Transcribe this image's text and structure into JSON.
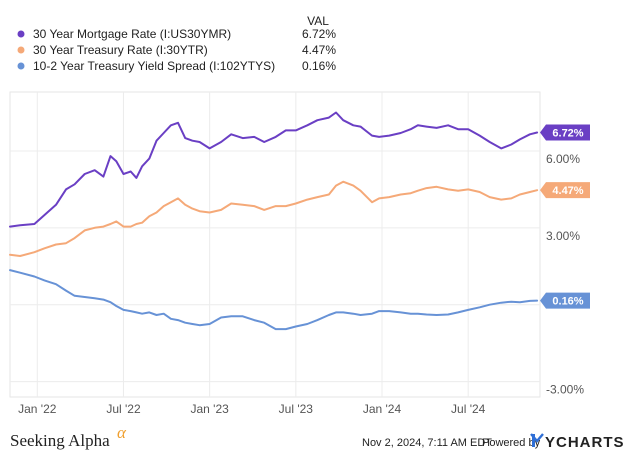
{
  "chart_data": {
    "type": "line",
    "title": "",
    "legend_header": "VAL",
    "y_ticks": [
      {
        "value": 6,
        "label": "6.00%"
      },
      {
        "value": 3,
        "label": "3.00%"
      },
      {
        "value": -3,
        "label": "-3.00%"
      }
    ],
    "ylim": [
      -3.6,
      8.3
    ],
    "x_ticks": [
      {
        "t": 0.7,
        "label": "Jan '22"
      },
      {
        "t": 6.7,
        "label": "Jul '22"
      },
      {
        "t": 12.7,
        "label": "Jan '23"
      },
      {
        "t": 18.7,
        "label": "Jul '23"
      },
      {
        "t": 24.7,
        "label": "Jan '24"
      },
      {
        "t": 30.7,
        "label": "Jul '24"
      }
    ],
    "xlim": [
      -1.2,
      35.7
    ],
    "series": [
      {
        "name": "30 Year Mortgage Rate (I:US30YMR)",
        "value_label": "6.72%",
        "badge": "6.72%",
        "color": "#6a3fc4",
        "points": [
          [
            -1.2,
            3.05
          ],
          [
            -0.5,
            3.1
          ],
          [
            0.5,
            3.15
          ],
          [
            1.2,
            3.5
          ],
          [
            2.0,
            3.9
          ],
          [
            2.7,
            4.5
          ],
          [
            3.3,
            4.7
          ],
          [
            4.0,
            5.1
          ],
          [
            4.7,
            5.25
          ],
          [
            5.3,
            5.0
          ],
          [
            5.8,
            5.8
          ],
          [
            6.2,
            5.6
          ],
          [
            6.7,
            5.1
          ],
          [
            7.2,
            5.2
          ],
          [
            7.6,
            4.95
          ],
          [
            8.0,
            5.4
          ],
          [
            8.5,
            5.7
          ],
          [
            9.0,
            6.4
          ],
          [
            9.5,
            6.7
          ],
          [
            10.0,
            7.0
          ],
          [
            10.5,
            7.1
          ],
          [
            11.0,
            6.5
          ],
          [
            11.5,
            6.4
          ],
          [
            12.0,
            6.35
          ],
          [
            12.7,
            6.1
          ],
          [
            13.5,
            6.35
          ],
          [
            14.2,
            6.65
          ],
          [
            15.0,
            6.5
          ],
          [
            15.8,
            6.55
          ],
          [
            16.5,
            6.35
          ],
          [
            17.3,
            6.55
          ],
          [
            18.0,
            6.8
          ],
          [
            18.7,
            6.8
          ],
          [
            19.5,
            7.0
          ],
          [
            20.2,
            7.2
          ],
          [
            21.0,
            7.3
          ],
          [
            21.5,
            7.5
          ],
          [
            22.0,
            7.2
          ],
          [
            22.7,
            7.0
          ],
          [
            23.2,
            6.95
          ],
          [
            24.0,
            6.6
          ],
          [
            24.5,
            6.55
          ],
          [
            25.2,
            6.6
          ],
          [
            26.0,
            6.7
          ],
          [
            26.7,
            6.85
          ],
          [
            27.2,
            7.0
          ],
          [
            27.8,
            6.95
          ],
          [
            28.5,
            6.9
          ],
          [
            29.3,
            7.0
          ],
          [
            30.0,
            6.85
          ],
          [
            30.7,
            6.85
          ],
          [
            31.5,
            6.6
          ],
          [
            32.2,
            6.35
          ],
          [
            33.0,
            6.1
          ],
          [
            33.7,
            6.25
          ],
          [
            34.3,
            6.45
          ],
          [
            35.0,
            6.65
          ],
          [
            35.5,
            6.72
          ]
        ]
      },
      {
        "name": "30 Year Treasury Rate (I:30YTR)",
        "value_label": "4.47%",
        "badge": "4.47%",
        "color": "#f5a978",
        "points": [
          [
            -1.2,
            1.95
          ],
          [
            -0.5,
            1.9
          ],
          [
            0.5,
            2.05
          ],
          [
            1.2,
            2.2
          ],
          [
            2.0,
            2.35
          ],
          [
            2.7,
            2.4
          ],
          [
            3.3,
            2.6
          ],
          [
            4.0,
            2.9
          ],
          [
            4.7,
            3.0
          ],
          [
            5.3,
            3.05
          ],
          [
            5.8,
            3.15
          ],
          [
            6.2,
            3.25
          ],
          [
            6.7,
            3.05
          ],
          [
            7.2,
            3.05
          ],
          [
            7.6,
            3.15
          ],
          [
            8.0,
            3.2
          ],
          [
            8.5,
            3.45
          ],
          [
            9.0,
            3.6
          ],
          [
            9.5,
            3.85
          ],
          [
            10.0,
            4.0
          ],
          [
            10.5,
            4.15
          ],
          [
            11.0,
            3.9
          ],
          [
            11.5,
            3.75
          ],
          [
            12.0,
            3.65
          ],
          [
            12.7,
            3.6
          ],
          [
            13.5,
            3.7
          ],
          [
            14.2,
            3.95
          ],
          [
            15.0,
            3.9
          ],
          [
            15.8,
            3.85
          ],
          [
            16.5,
            3.7
          ],
          [
            17.3,
            3.85
          ],
          [
            18.0,
            3.85
          ],
          [
            18.7,
            3.95
          ],
          [
            19.5,
            4.1
          ],
          [
            20.2,
            4.2
          ],
          [
            21.0,
            4.3
          ],
          [
            21.5,
            4.65
          ],
          [
            22.0,
            4.8
          ],
          [
            22.7,
            4.65
          ],
          [
            23.2,
            4.45
          ],
          [
            24.0,
            4.0
          ],
          [
            24.5,
            4.15
          ],
          [
            25.2,
            4.2
          ],
          [
            26.0,
            4.3
          ],
          [
            26.7,
            4.35
          ],
          [
            27.2,
            4.45
          ],
          [
            27.8,
            4.55
          ],
          [
            28.5,
            4.6
          ],
          [
            29.3,
            4.5
          ],
          [
            30.0,
            4.45
          ],
          [
            30.7,
            4.5
          ],
          [
            31.5,
            4.4
          ],
          [
            32.2,
            4.2
          ],
          [
            33.0,
            4.1
          ],
          [
            33.7,
            4.15
          ],
          [
            34.3,
            4.3
          ],
          [
            35.0,
            4.4
          ],
          [
            35.5,
            4.47
          ]
        ]
      },
      {
        "name": "10-2 Year Treasury Yield Spread (I:102YTYS)",
        "value_label": "0.16%",
        "badge": "0.16%",
        "color": "#6792d6",
        "points": [
          [
            -1.2,
            1.35
          ],
          [
            -0.5,
            1.25
          ],
          [
            0.5,
            1.1
          ],
          [
            1.2,
            0.95
          ],
          [
            2.0,
            0.8
          ],
          [
            2.7,
            0.55
          ],
          [
            3.3,
            0.35
          ],
          [
            4.0,
            0.3
          ],
          [
            4.7,
            0.25
          ],
          [
            5.3,
            0.2
          ],
          [
            5.8,
            0.1
          ],
          [
            6.2,
            -0.05
          ],
          [
            6.7,
            -0.2
          ],
          [
            7.2,
            -0.25
          ],
          [
            7.6,
            -0.3
          ],
          [
            8.0,
            -0.35
          ],
          [
            8.5,
            -0.3
          ],
          [
            9.0,
            -0.4
          ],
          [
            9.5,
            -0.35
          ],
          [
            10.0,
            -0.55
          ],
          [
            10.5,
            -0.6
          ],
          [
            11.0,
            -0.7
          ],
          [
            11.5,
            -0.75
          ],
          [
            12.0,
            -0.8
          ],
          [
            12.7,
            -0.75
          ],
          [
            13.5,
            -0.5
          ],
          [
            14.2,
            -0.45
          ],
          [
            15.0,
            -0.45
          ],
          [
            15.8,
            -0.6
          ],
          [
            16.5,
            -0.7
          ],
          [
            17.3,
            -0.95
          ],
          [
            18.0,
            -0.95
          ],
          [
            18.7,
            -0.85
          ],
          [
            19.5,
            -0.75
          ],
          [
            20.2,
            -0.6
          ],
          [
            21.0,
            -0.4
          ],
          [
            21.5,
            -0.3
          ],
          [
            22.0,
            -0.3
          ],
          [
            22.7,
            -0.35
          ],
          [
            23.2,
            -0.4
          ],
          [
            24.0,
            -0.35
          ],
          [
            24.5,
            -0.25
          ],
          [
            25.2,
            -0.25
          ],
          [
            26.0,
            -0.3
          ],
          [
            26.7,
            -0.35
          ],
          [
            27.2,
            -0.35
          ],
          [
            27.8,
            -0.38
          ],
          [
            28.5,
            -0.4
          ],
          [
            29.3,
            -0.38
          ],
          [
            30.0,
            -0.3
          ],
          [
            30.7,
            -0.2
          ],
          [
            31.5,
            -0.1
          ],
          [
            32.2,
            0.0
          ],
          [
            33.0,
            0.08
          ],
          [
            33.7,
            0.12
          ],
          [
            34.3,
            0.1
          ],
          [
            35.0,
            0.15
          ],
          [
            35.5,
            0.16
          ]
        ]
      }
    ]
  },
  "footer": {
    "brand": "Seeking Alpha",
    "brand_symbol": "α",
    "timestamp": "Nov 2, 2024, 7:11 AM EDT",
    "powered_by": "Powered by",
    "provider": "YCHARTS"
  }
}
